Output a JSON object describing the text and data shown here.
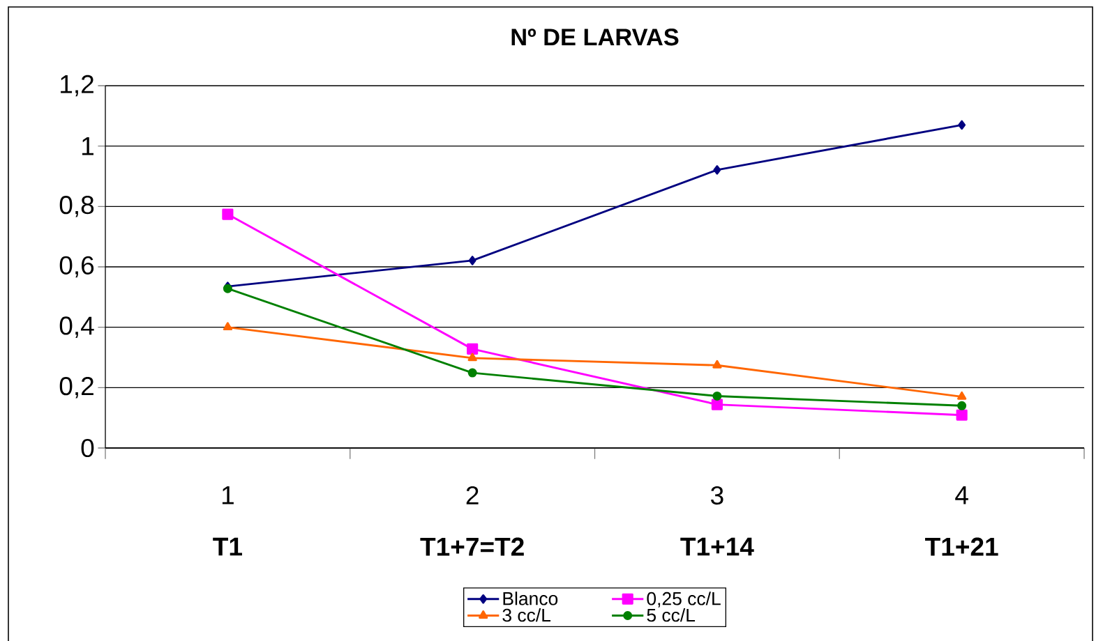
{
  "chart_data": {
    "type": "line",
    "title": "Nº DE LARVAS",
    "categories": [
      "1",
      "2",
      "3",
      "4"
    ],
    "annotations": [
      "T1",
      "T1+7=T2",
      "T1+14",
      "T1+21"
    ],
    "series": [
      {
        "name": "Blanco",
        "color": "#000080",
        "marker": "diamond",
        "values": [
          0.535,
          0.621,
          0.921,
          1.07
        ]
      },
      {
        "name": "0,25 cc/L",
        "color": "#ff00ff",
        "marker": "square",
        "values": [
          0.774,
          0.328,
          0.144,
          0.109
        ]
      },
      {
        "name": "3 cc/L",
        "color": "#ff6600",
        "marker": "triangle",
        "values": [
          0.4,
          0.298,
          0.274,
          0.17
        ]
      },
      {
        "name": "5 cc/L",
        "color": "#008000",
        "marker": "circle",
        "values": [
          0.528,
          0.249,
          0.172,
          0.14
        ]
      }
    ],
    "ylim": [
      0,
      1.2
    ],
    "yticks": [
      0,
      {
        "value": 0.2,
        "label": "0,2"
      },
      {
        "value": 0.4,
        "label": "0,4"
      },
      {
        "value": 0.6,
        "label": "0,6"
      },
      {
        "value": 0.8,
        "label": "0,8"
      },
      1,
      {
        "value": 1.2,
        "label": "1,2"
      }
    ],
    "grid": "y",
    "legend": "bottom",
    "line_style": "solid"
  }
}
